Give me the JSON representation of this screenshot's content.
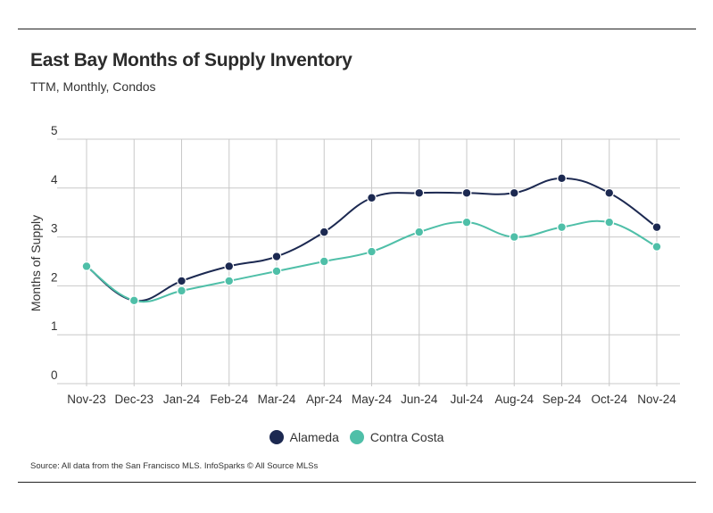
{
  "header": {
    "title": "East Bay Months of Supply Inventory",
    "subtitle": "TTM, Monthly, Condos"
  },
  "footer": {
    "source": "Source:  All data from the San Francisco MLS. InfoSparks © All Source MLSs"
  },
  "colors": {
    "alameda": "#1c2951",
    "contra_costa": "#4fbfa8",
    "grid": "#c8c8c8"
  },
  "chart_data": {
    "type": "line",
    "title": "East Bay Months of Supply Inventory",
    "subtitle": "TTM, Monthly, Condos",
    "xlabel": "",
    "ylabel": "Months of Supply",
    "ylim": [
      0,
      5
    ],
    "yticks": [
      "0",
      "1",
      "2",
      "3",
      "4",
      "5"
    ],
    "categories": [
      "Nov-23",
      "Dec-23",
      "Jan-24",
      "Feb-24",
      "Mar-24",
      "Apr-24",
      "May-24",
      "Jun-24",
      "Jul-24",
      "Aug-24",
      "Sep-24",
      "Oct-24",
      "Nov-24"
    ],
    "series": [
      {
        "name": "Alameda",
        "values": [
          2.4,
          1.7,
          2.1,
          2.4,
          2.6,
          3.1,
          3.8,
          3.9,
          3.9,
          3.9,
          4.2,
          3.9,
          3.2
        ]
      },
      {
        "name": "Contra Costa",
        "values": [
          2.4,
          1.7,
          1.9,
          2.1,
          2.3,
          2.5,
          2.7,
          3.1,
          3.3,
          3.0,
          3.2,
          3.3,
          2.8
        ]
      }
    ],
    "legend": [
      {
        "name": "Alameda",
        "color": "#1c2951"
      },
      {
        "name": "Contra Costa",
        "color": "#4fbfa8"
      }
    ],
    "grid": true,
    "legend_position": "bottom"
  }
}
